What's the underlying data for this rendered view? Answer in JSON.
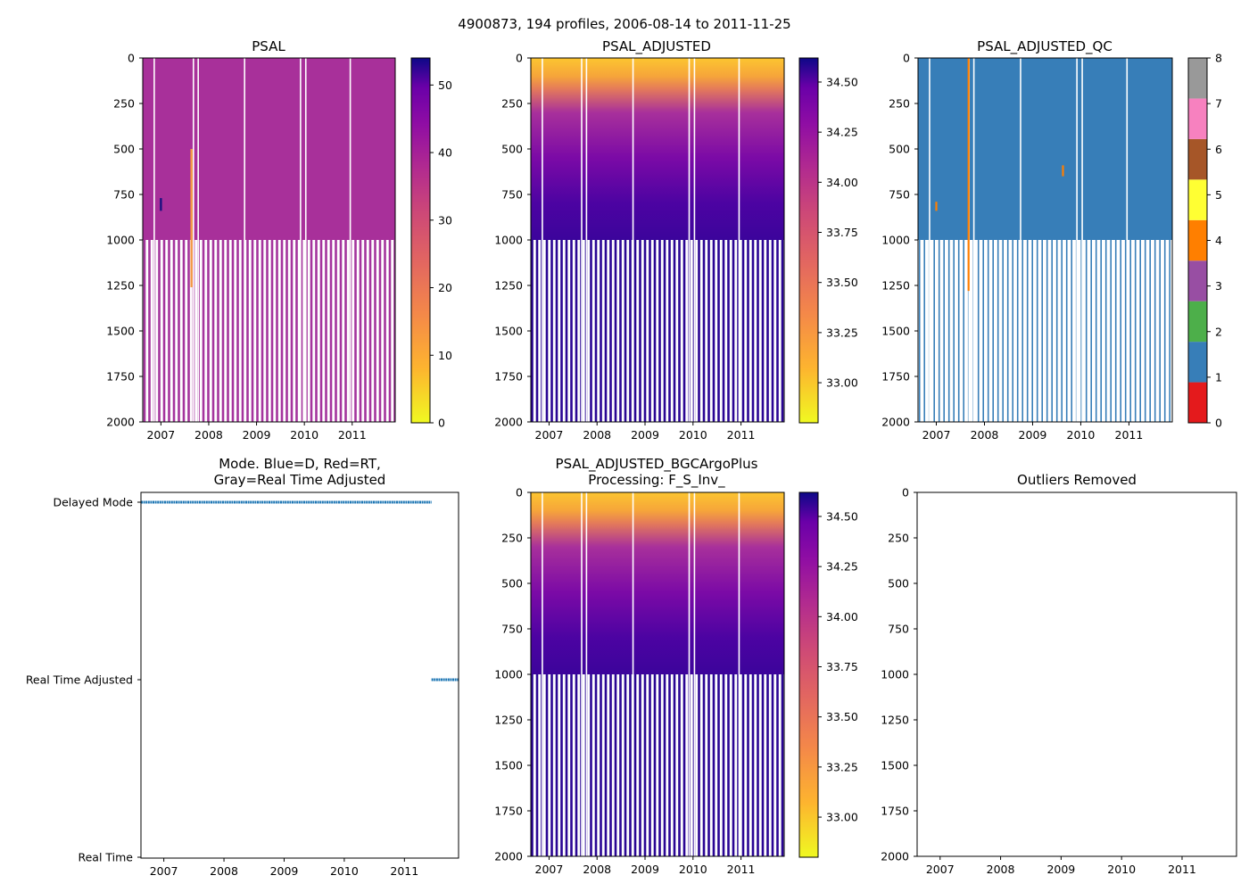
{
  "suptitle": "4900873, 194 profiles, 2006-08-14 to 2011-11-25",
  "chart_data": [
    {
      "id": "psal",
      "type": "heatmap",
      "title": "PSAL",
      "x_ticks": [
        "2007",
        "2008",
        "2009",
        "2010",
        "2011"
      ],
      "x_tick_values": [
        2007,
        2008,
        2009,
        2010,
        2011
      ],
      "xlim": [
        2006.62,
        2011.9
      ],
      "ylim": [
        2000,
        0
      ],
      "y_ticks": [
        0,
        250,
        500,
        750,
        1000,
        1250,
        1500,
        1750,
        2000
      ],
      "colormap": "plasma_r",
      "clim": [
        0,
        54
      ],
      "colorbar_ticks": [
        0,
        10,
        20,
        30,
        40,
        50
      ],
      "upper_color": "#a8309a",
      "lower_color": "#a4349d",
      "gap_years": [
        2006.86,
        2007.68,
        2007.78,
        2008.75,
        2009.92,
        2010.03,
        2010.96
      ],
      "annotations": [
        {
          "label": "high value spike",
          "x": 2007.0,
          "depth": [
            770,
            840
          ],
          "color": "#1a1180"
        },
        {
          "label": "low value streak",
          "x": 2007.64,
          "depth": [
            500,
            1260
          ],
          "color": "#f59b45"
        }
      ]
    },
    {
      "id": "psal_adjusted",
      "type": "heatmap",
      "title": "PSAL_ADJUSTED",
      "x_ticks": [
        "2007",
        "2008",
        "2009",
        "2010",
        "2011"
      ],
      "x_tick_values": [
        2007,
        2008,
        2009,
        2010,
        2011
      ],
      "xlim": [
        2006.62,
        2011.9
      ],
      "ylim": [
        2000,
        0
      ],
      "y_ticks": [
        0,
        250,
        500,
        750,
        1000,
        1250,
        1500,
        1750,
        2000
      ],
      "colormap": "plasma_r",
      "clim": [
        32.8,
        34.62
      ],
      "colorbar_ticks": [
        33.0,
        33.25,
        33.5,
        33.75,
        34.0,
        34.25,
        34.5
      ],
      "gap_years": [
        2006.86,
        2007.68,
        2007.78,
        2008.75,
        2009.92,
        2010.03,
        2010.96
      ],
      "depth_profile": [
        {
          "depth": 0,
          "value": 33.05
        },
        {
          "depth": 120,
          "value": 33.2
        },
        {
          "depth": 180,
          "value": 33.6
        },
        {
          "depth": 260,
          "value": 33.9
        },
        {
          "depth": 500,
          "value": 34.15
        },
        {
          "depth": 800,
          "value": 34.4
        },
        {
          "depth": 1000,
          "value": 34.5
        },
        {
          "depth": 2000,
          "value": 34.58
        }
      ]
    },
    {
      "id": "psal_adjusted_qc",
      "type": "heatmap",
      "title": "PSAL_ADJUSTED_QC",
      "x_ticks": [
        "2007",
        "2008",
        "2009",
        "2010",
        "2011"
      ],
      "x_tick_values": [
        2007,
        2008,
        2009,
        2010,
        2011
      ],
      "xlim": [
        2006.62,
        2011.9
      ],
      "ylim": [
        2000,
        0
      ],
      "y_ticks": [
        0,
        250,
        500,
        750,
        1000,
        1250,
        1500,
        1750,
        2000
      ],
      "colormap": "Set1",
      "clim": [
        0,
        8
      ],
      "colorbar_ticks": [
        0,
        1,
        2,
        3,
        4,
        5,
        6,
        7,
        8
      ],
      "qc_colors": [
        "#e41a1c",
        "#377eb8",
        "#4daf4a",
        "#984ea3",
        "#ff7f00",
        "#ffff33",
        "#a65628",
        "#f781bf",
        "#999999"
      ],
      "dominant_flag": 1,
      "gap_years": [
        2006.86,
        2007.68,
        2007.78,
        2008.75,
        2009.92,
        2010.03,
        2010.96
      ],
      "flag4_marks": [
        {
          "x": 2007.67,
          "depth": [
            0,
            1280
          ]
        },
        {
          "x": 2009.63,
          "depth": [
            590,
            650
          ]
        },
        {
          "x": 2007.0,
          "depth": [
            790,
            840
          ]
        }
      ]
    },
    {
      "id": "mode",
      "type": "scatter",
      "title": "Mode. Blue=D, Red=RT,\nGray=Real Time Adjusted",
      "title_lines": [
        "Mode. Blue=D, Red=RT,",
        "Gray=Real Time Adjusted"
      ],
      "x_ticks": [
        "2007",
        "2008",
        "2009",
        "2010",
        "2011"
      ],
      "x_tick_values": [
        2007,
        2008,
        2009,
        2010,
        2011
      ],
      "xlim": [
        2006.62,
        2011.9
      ],
      "y_categories": [
        "Real Time",
        "Real Time Adjusted",
        "Delayed Mode"
      ],
      "series": [
        {
          "name": "Delayed Mode",
          "y": "Delayed Mode",
          "x_range": [
            2006.62,
            2011.45
          ],
          "color": "#1f77b4"
        },
        {
          "name": "Real Time Adjusted",
          "y": "Real Time Adjusted",
          "x_range": [
            2011.45,
            2011.9
          ],
          "color": "#1f77b4"
        }
      ]
    },
    {
      "id": "psal_bgc",
      "type": "heatmap",
      "title": "PSAL_ADJUSTED_BGCArgoPlus\nProcessing: F_S_Inv_",
      "title_lines": [
        "PSAL_ADJUSTED_BGCArgoPlus",
        "Processing: F_S_Inv_"
      ],
      "x_ticks": [
        "2007",
        "2008",
        "2009",
        "2010",
        "2011"
      ],
      "x_tick_values": [
        2007,
        2008,
        2009,
        2010,
        2011
      ],
      "xlim": [
        2006.62,
        2011.9
      ],
      "ylim": [
        2000,
        0
      ],
      "y_ticks": [
        0,
        250,
        500,
        750,
        1000,
        1250,
        1500,
        1750,
        2000
      ],
      "colormap": "plasma_r",
      "clim": [
        32.8,
        34.62
      ],
      "colorbar_ticks": [
        33.0,
        33.25,
        33.5,
        33.75,
        34.0,
        34.25,
        34.5
      ],
      "gap_years": [
        2006.86,
        2007.68,
        2007.78,
        2008.75,
        2009.92,
        2010.03,
        2010.96
      ]
    },
    {
      "id": "outliers",
      "type": "scatter",
      "title": "Outliers Removed",
      "x_ticks": [
        "2007",
        "2008",
        "2009",
        "2010",
        "2011"
      ],
      "x_tick_values": [
        2007,
        2008,
        2009,
        2010,
        2011
      ],
      "xlim": [
        2006.62,
        2011.9
      ],
      "ylim": [
        2000,
        0
      ],
      "y_ticks": [
        0,
        250,
        500,
        750,
        1000,
        1250,
        1500,
        1750,
        2000
      ],
      "points": []
    }
  ]
}
